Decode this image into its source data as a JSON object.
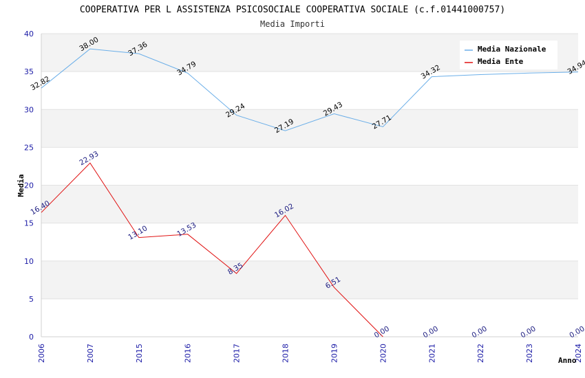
{
  "chart_data": {
    "type": "line",
    "title": "COOPERATIVA PER L ASSISTENZA PSICOSOCIALE COOPERATIVA SOCIALE (c.f.01441000757)",
    "subtitle": "Media Importi",
    "xlabel": "Anno",
    "ylabel": "Media",
    "ylim": [
      0,
      40
    ],
    "yticks": [
      "0",
      "5",
      "10",
      "15",
      "20",
      "25",
      "30",
      "35",
      "40"
    ],
    "categories": [
      "2006",
      "2007",
      "2015",
      "2016",
      "2017",
      "2018",
      "2019",
      "2020",
      "2021",
      "2022",
      "2023",
      "2024"
    ],
    "legend_position": "top-right",
    "grid": true,
    "series": [
      {
        "name": "Media Nazionale",
        "color": "#6aaee8",
        "label_color": "#000000",
        "values": [
          32.82,
          38.0,
          37.36,
          34.79,
          29.24,
          27.19,
          29.43,
          27.71,
          34.32,
          null,
          null,
          34.94
        ],
        "line_values": [
          32.82,
          38.0,
          37.36,
          34.79,
          29.24,
          27.19,
          29.43,
          27.71,
          34.32,
          34.6,
          34.8,
          34.94
        ],
        "labels": [
          "32.82",
          "38.00",
          "37.36",
          "34.79",
          "29.24",
          "27.19",
          "29.43",
          "27.71",
          "34.32",
          "",
          "",
          "34.94"
        ]
      },
      {
        "name": "Media Ente",
        "color": "#e01010",
        "label_color": "#1a1a80",
        "values": [
          16.4,
          22.93,
          13.1,
          13.53,
          8.35,
          16.02,
          6.51,
          0.0,
          0.0,
          0.0,
          0.0,
          0.0
        ],
        "line_values": [
          16.4,
          22.93,
          13.1,
          13.53,
          8.35,
          16.02,
          6.51,
          0.0,
          null,
          null,
          null,
          null
        ],
        "labels": [
          "16.40",
          "22.93",
          "13.10",
          "13.53",
          "8.35",
          "16.02",
          "6.51",
          "0.00",
          "0.00",
          "0.00",
          "0.00",
          "0.00"
        ]
      }
    ]
  }
}
